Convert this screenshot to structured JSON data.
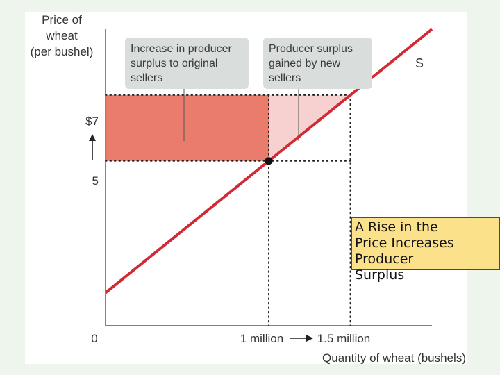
{
  "chart_data": {
    "type": "line",
    "y_axis_title": [
      "Price of",
      "wheat",
      "(per bushel)"
    ],
    "x_axis_title": "Quantity of wheat (bushels)",
    "origin_label": "0",
    "y_ticks": [
      {
        "label": "$7",
        "value": 7
      },
      {
        "label": "5",
        "value": 5
      }
    ],
    "x_ticks": [
      {
        "label": "1 million",
        "value": 1.0
      },
      {
        "label": "1.5 million",
        "value": 1.5
      }
    ],
    "curve_label": "S",
    "supply_curve": [
      {
        "x": 0.0,
        "y": 1.0
      },
      {
        "x": 1.0,
        "y": 5.0
      },
      {
        "x": 1.5,
        "y": 7.0
      },
      {
        "x": 2.0,
        "y": 9.0
      }
    ],
    "equilibrium_point": {
      "x": 1.0,
      "y": 5.0
    },
    "original_sellers_area": {
      "x": [
        0,
        1.0
      ],
      "y": [
        5,
        7
      ]
    },
    "new_sellers_area": {
      "x": [
        1.0,
        1.5
      ],
      "y": [
        5,
        7
      ]
    },
    "xlim": [
      0,
      2.0
    ],
    "ylim": [
      0,
      9.0
    ],
    "colors": {
      "curve": "#d22a35",
      "original_area": "#ea7c6e",
      "new_area": "#f6d1cf",
      "callout": "#d9dddc",
      "caption_bg": "#fbe18a"
    }
  },
  "callouts": {
    "left": [
      "Increase in producer",
      "surplus to original",
      "sellers"
    ],
    "right": [
      "Producer surplus",
      "gained by new",
      "sellers"
    ]
  },
  "caption": [
    "A Rise in the",
    "Price Increases",
    "Producer",
    "Surplus"
  ]
}
